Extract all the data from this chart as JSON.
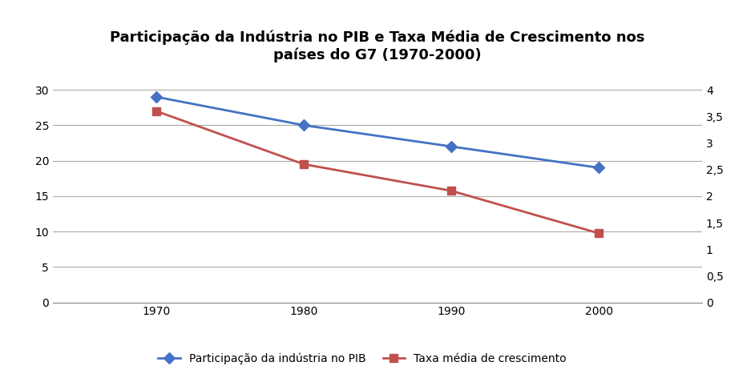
{
  "title": "Participação da Indústria no PIB e Taxa Média de Crescimento nos\npaíses do G7 (1970-2000)",
  "years": [
    1970,
    1980,
    1990,
    2000
  ],
  "pib_values": [
    29,
    25,
    22,
    19
  ],
  "growth_values": [
    3.6,
    2.6,
    2.1,
    1.3
  ],
  "pib_color": "#4472C4",
  "growth_color": "#C0504D",
  "left_ylim": [
    0,
    32
  ],
  "left_yticks": [
    0,
    5,
    10,
    15,
    20,
    25,
    30
  ],
  "right_ylim": [
    0,
    4.267
  ],
  "right_yticks": [
    0,
    0.5,
    1.0,
    1.5,
    2.0,
    2.5,
    3.0,
    3.5,
    4.0
  ],
  "pib_label": "Participação da indústria no PIB",
  "growth_label": "Taxa média de crescimento",
  "bg_color": "#FFFFFF",
  "grid_color": "#AAAAAA",
  "title_fontsize": 13,
  "tick_fontsize": 10,
  "legend_fontsize": 10
}
